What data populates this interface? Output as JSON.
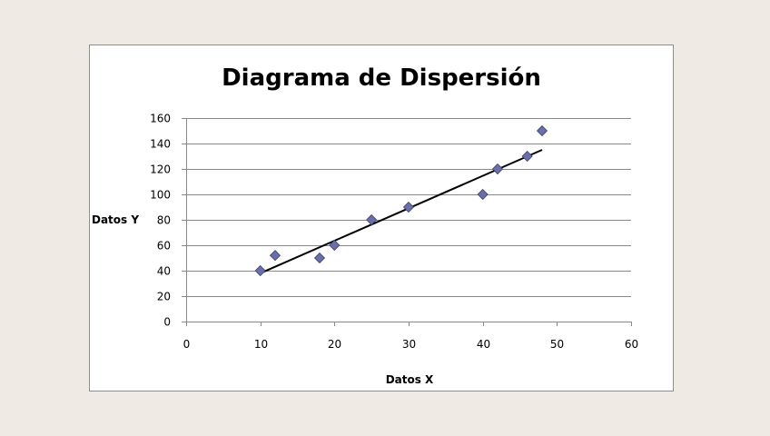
{
  "chart_data": {
    "type": "scatter",
    "title": "Diagrama de Dispersión",
    "xlabel": "Datos X",
    "ylabel": "Datos Y",
    "xlim": [
      0,
      60
    ],
    "ylim": [
      0,
      160
    ],
    "xticks": [
      0,
      10,
      20,
      30,
      40,
      50,
      60
    ],
    "yticks": [
      0,
      20,
      40,
      60,
      80,
      100,
      120,
      140,
      160
    ],
    "grid": "horizontal",
    "legend": "none",
    "points": [
      {
        "x": 10,
        "y": 40
      },
      {
        "x": 12,
        "y": 52
      },
      {
        "x": 18,
        "y": 50
      },
      {
        "x": 20,
        "y": 60
      },
      {
        "x": 25,
        "y": 80
      },
      {
        "x": 30,
        "y": 90
      },
      {
        "x": 40,
        "y": 100
      },
      {
        "x": 42,
        "y": 120
      },
      {
        "x": 46,
        "y": 130
      },
      {
        "x": 48,
        "y": 150
      }
    ],
    "trendline": {
      "type": "linear",
      "x": [
        10,
        48
      ],
      "y": [
        38,
        135
      ]
    },
    "colors": {
      "marker": "#6b6fa8",
      "marker_stroke": "#3c3f72",
      "trendline": "#000000",
      "grid": "#8a8a8a",
      "axis": "#8a8a8a",
      "background": "#efebe4",
      "frame": "#ffffff"
    }
  }
}
